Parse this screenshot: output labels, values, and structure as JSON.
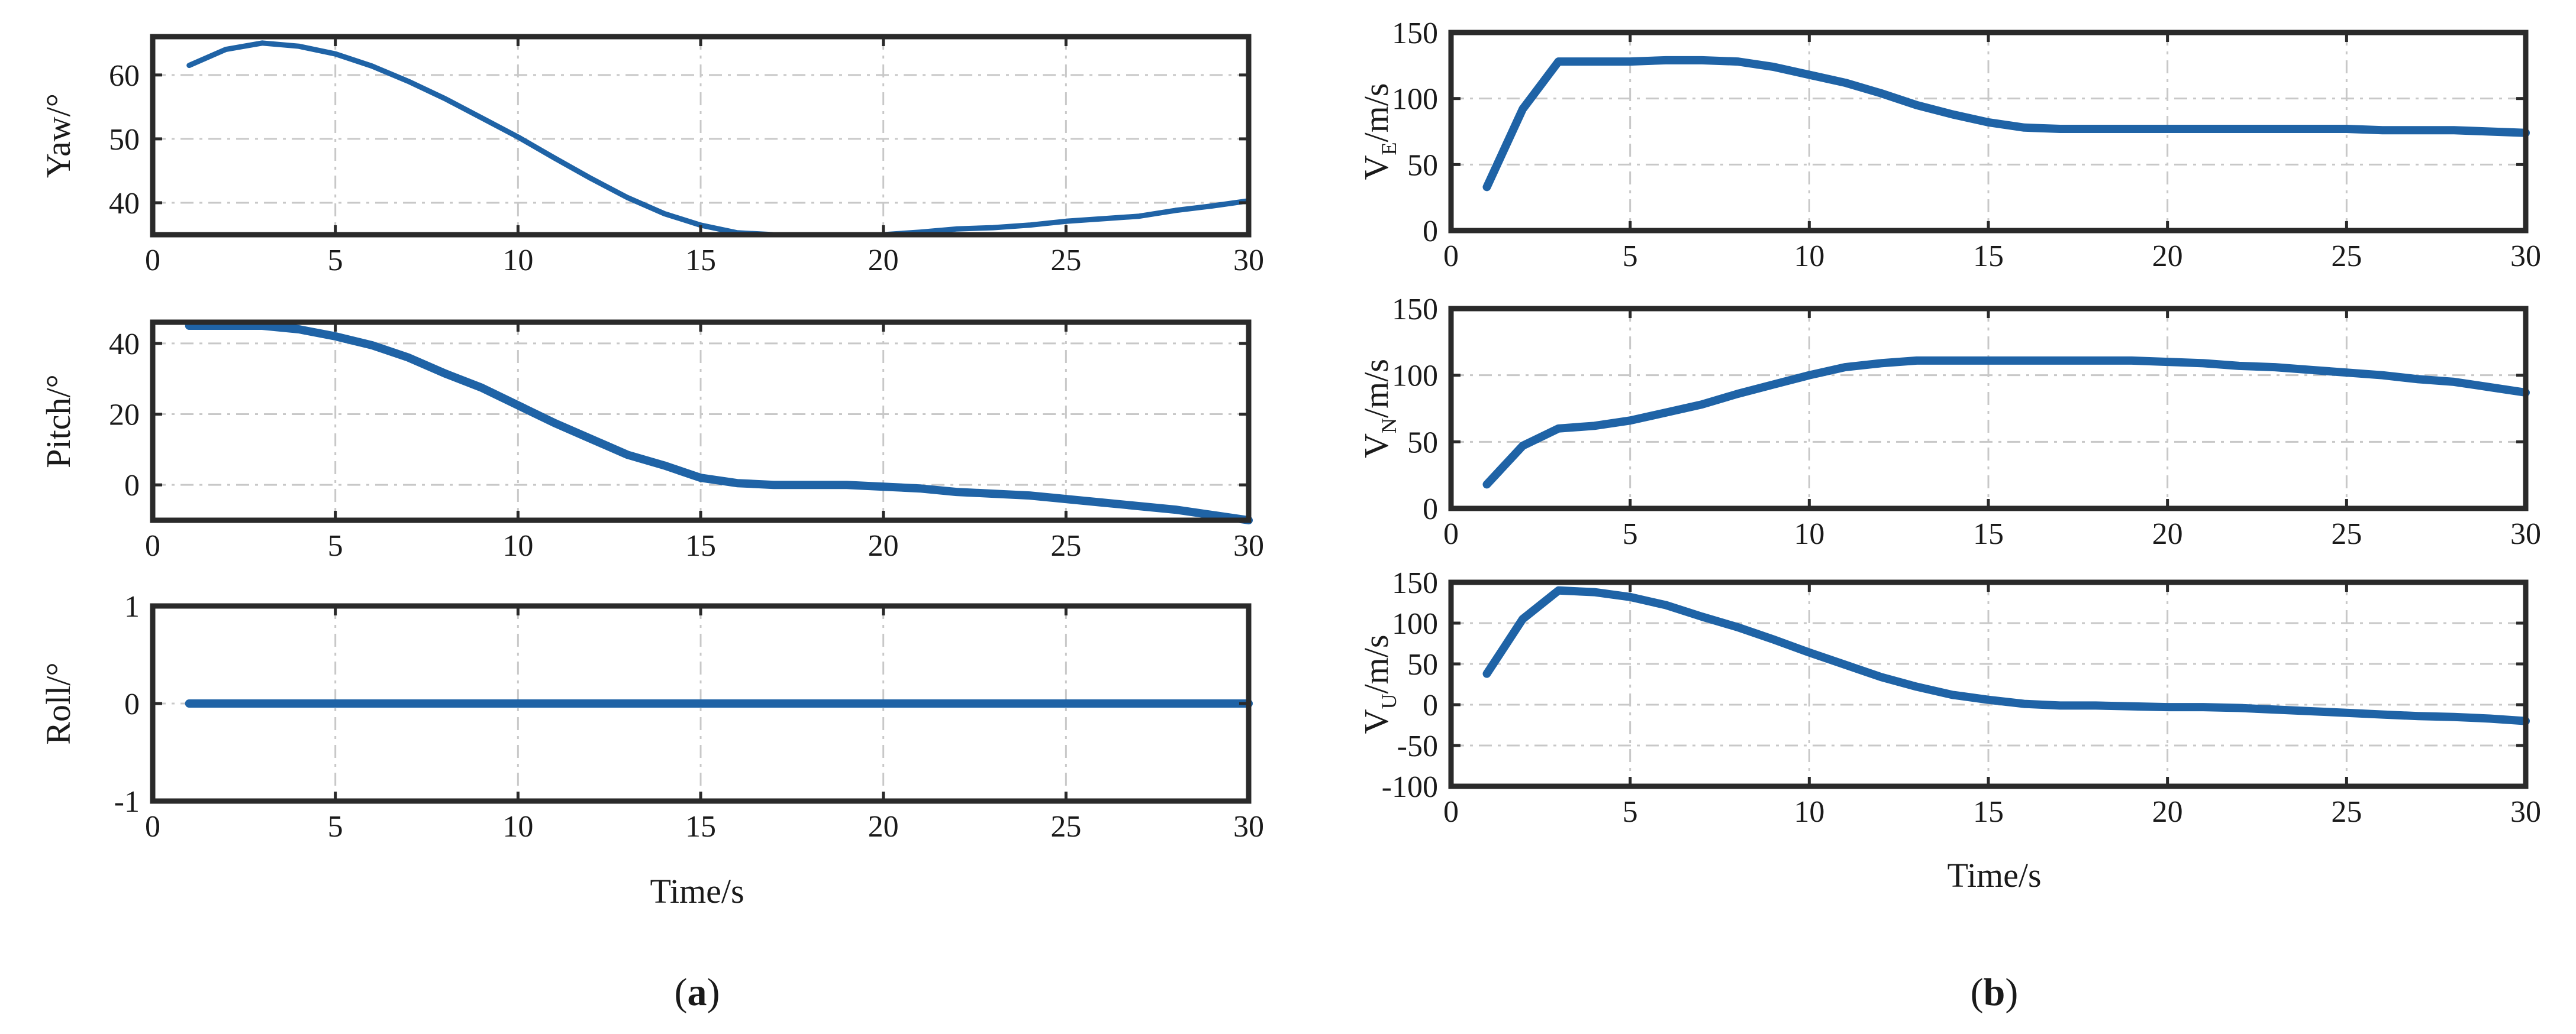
{
  "styles": {
    "line_color": "#1f63a6"
  },
  "panels": [
    {
      "label": "(a)",
      "label_bold": "a",
      "xlabel": "Time/s"
    },
    {
      "label": "(b)",
      "label_bold": "b",
      "xlabel": "Time/s"
    }
  ],
  "chart_data": [
    {
      "type": "line",
      "panel": "a",
      "ylabel": "Yaw/°",
      "ylabel_main": "Yaw/°",
      "xlim": [
        0,
        30
      ],
      "ylim": [
        35,
        66
      ],
      "xticks": [
        0,
        5,
        10,
        15,
        20,
        25,
        30
      ],
      "yticks": [
        40,
        50,
        60
      ],
      "grid": true,
      "x": [
        1,
        2,
        3,
        4,
        5,
        6,
        7,
        8,
        9,
        10,
        11,
        12,
        13,
        14,
        15,
        16,
        17,
        18,
        19,
        20,
        21,
        22,
        23,
        24,
        25,
        26,
        27,
        28,
        29,
        30
      ],
      "values": [
        61.5,
        64,
        65,
        64.5,
        63.3,
        61.4,
        59,
        56.3,
        53.3,
        50.3,
        47,
        43.8,
        40.8,
        38.3,
        36.5,
        35.3,
        35,
        35,
        35,
        35,
        35.4,
        35.9,
        36.1,
        36.5,
        37.1,
        37.5,
        37.9,
        38.8,
        39.5,
        40.3
      ]
    },
    {
      "type": "line",
      "panel": "a",
      "ylabel": "Pitch/°",
      "ylabel_main": "Pitch/°",
      "xlim": [
        0,
        30
      ],
      "ylim": [
        -10,
        46
      ],
      "xticks": [
        0,
        5,
        10,
        15,
        20,
        25,
        30
      ],
      "yticks": [
        0,
        20,
        40
      ],
      "grid": true,
      "x": [
        1,
        2,
        3,
        4,
        5,
        6,
        7,
        8,
        9,
        10,
        11,
        12,
        13,
        14,
        15,
        16,
        17,
        18,
        19,
        20,
        21,
        22,
        23,
        24,
        25,
        26,
        27,
        28,
        29,
        30
      ],
      "values": [
        45,
        45,
        45,
        44,
        42,
        39.5,
        36,
        31.5,
        27.5,
        22.5,
        17.5,
        13,
        8.5,
        5.5,
        2,
        0.5,
        0,
        0,
        0,
        -0.5,
        -1,
        -2,
        -2.5,
        -3,
        -4,
        -5,
        -6,
        -7,
        -8.5,
        -10
      ]
    },
    {
      "type": "line",
      "panel": "a",
      "ylabel": "Roll/°",
      "ylabel_main": "Roll/°",
      "xlim": [
        0,
        30
      ],
      "ylim": [
        -1,
        1
      ],
      "xticks": [
        0,
        5,
        10,
        15,
        20,
        25,
        30
      ],
      "yticks": [
        -1,
        0,
        1
      ],
      "grid": true,
      "x": [
        1,
        30
      ],
      "values": [
        0,
        0
      ]
    },
    {
      "type": "line",
      "panel": "b",
      "ylabel": "VE/m/s",
      "ylabel_main": "V",
      "ylabel_sub": "E",
      "ylabel_rest": "/m/s",
      "xlim": [
        0,
        30
      ],
      "ylim": [
        0,
        150
      ],
      "xticks": [
        0,
        5,
        10,
        15,
        20,
        25,
        30
      ],
      "yticks": [
        0,
        50,
        100,
        150
      ],
      "grid": true,
      "x": [
        1,
        2,
        3,
        4,
        5,
        6,
        7,
        8,
        9,
        10,
        11,
        12,
        13,
        14,
        15,
        16,
        17,
        18,
        19,
        20,
        21,
        22,
        23,
        24,
        25,
        26,
        27,
        28,
        29,
        30
      ],
      "values": [
        33,
        92,
        128,
        128,
        128,
        129,
        129,
        128,
        124,
        118,
        112,
        104,
        95,
        88,
        82,
        78,
        77,
        77,
        77,
        77,
        77,
        77,
        77,
        77,
        77,
        76,
        76,
        76,
        75,
        74
      ]
    },
    {
      "type": "line",
      "panel": "b",
      "ylabel": "VN/m/s",
      "ylabel_main": "V",
      "ylabel_sub": "N",
      "ylabel_rest": "/m/s",
      "xlim": [
        0,
        30
      ],
      "ylim": [
        0,
        150
      ],
      "xticks": [
        0,
        5,
        10,
        15,
        20,
        25,
        30
      ],
      "yticks": [
        0,
        50,
        100,
        150
      ],
      "grid": true,
      "x": [
        1,
        2,
        3,
        4,
        5,
        6,
        7,
        8,
        9,
        10,
        11,
        12,
        13,
        14,
        15,
        16,
        17,
        18,
        19,
        20,
        21,
        22,
        23,
        24,
        25,
        26,
        27,
        28,
        29,
        30
      ],
      "values": [
        18,
        47,
        60,
        62,
        66,
        72,
        78,
        86,
        93,
        100,
        106,
        109,
        111,
        111,
        111,
        111,
        111,
        111,
        111,
        110,
        109,
        107,
        106,
        104,
        102,
        100,
        97,
        95,
        91,
        87
      ]
    },
    {
      "type": "line",
      "panel": "b",
      "ylabel": "VU/m/s",
      "ylabel_main": "V",
      "ylabel_sub": "U",
      "ylabel_rest": "/m/s",
      "xlim": [
        0,
        30
      ],
      "ylim": [
        -100,
        150
      ],
      "xticks": [
        0,
        5,
        10,
        15,
        20,
        25,
        30
      ],
      "yticks": [
        -100,
        -50,
        0,
        50,
        100,
        150
      ],
      "grid": true,
      "x": [
        1,
        2,
        3,
        4,
        5,
        6,
        7,
        8,
        9,
        10,
        11,
        12,
        13,
        14,
        15,
        16,
        17,
        18,
        19,
        20,
        21,
        22,
        23,
        24,
        25,
        26,
        27,
        28,
        29,
        30
      ],
      "values": [
        38,
        105,
        140,
        138,
        132,
        122,
        108,
        95,
        80,
        64,
        49,
        34,
        22,
        12,
        6,
        1,
        -1,
        -1,
        -2,
        -3,
        -3,
        -4,
        -6,
        -8,
        -10,
        -12,
        -14,
        -15,
        -17,
        -20
      ]
    }
  ]
}
